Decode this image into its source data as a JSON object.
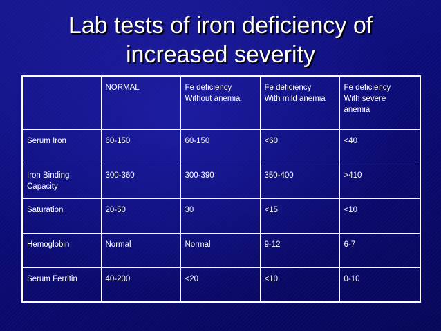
{
  "title": {
    "line1": "Lab tests of iron deficiency of",
    "line2": "increased severity"
  },
  "table": {
    "headers": [
      {
        "lines": [
          ""
        ]
      },
      {
        "lines": [
          "NORMAL"
        ]
      },
      {
        "lines": [
          "Fe deficiency",
          "Without anemia"
        ]
      },
      {
        "lines": [
          "Fe deficiency",
          "With mild anemia"
        ]
      },
      {
        "lines": [
          "Fe deficiency",
          "With severe",
          "anemia"
        ]
      }
    ],
    "rows": [
      {
        "label": [
          "Serum  Iron"
        ],
        "values": [
          "60-150",
          "60-150",
          "<60",
          "<40"
        ]
      },
      {
        "label": [
          "Iron Binding",
          "Capacity"
        ],
        "values": [
          "300-360",
          "300-390",
          "350-400",
          ">410"
        ]
      },
      {
        "label": [
          "Saturation"
        ],
        "values": [
          "20-50",
          "30",
          "<15",
          "<10"
        ]
      },
      {
        "label": [
          "Hemoglobin"
        ],
        "values": [
          "Normal",
          "Normal",
          "9-12",
          "6-7"
        ]
      },
      {
        "label": [
          "Serum Ferritin"
        ],
        "values": [
          "40-200",
          "<20",
          "<10",
          "0-10"
        ]
      }
    ]
  }
}
